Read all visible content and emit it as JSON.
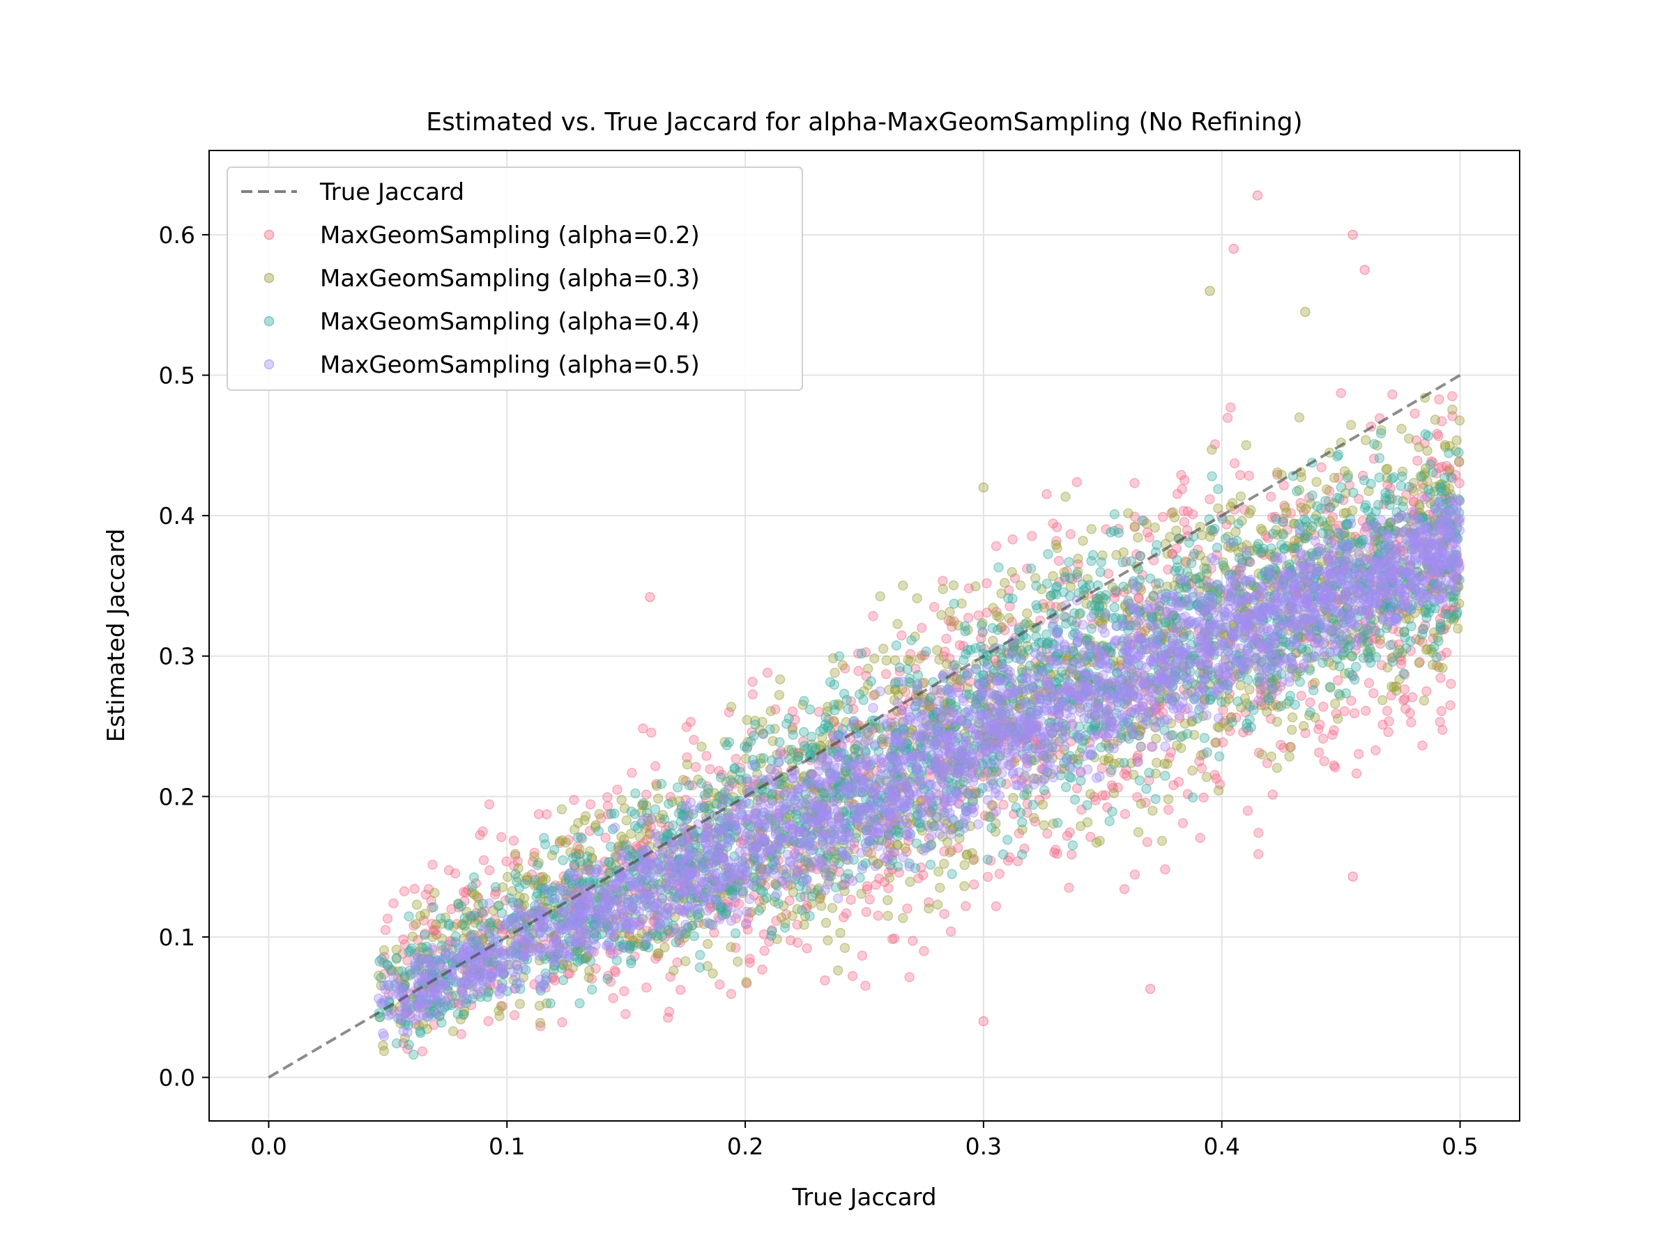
{
  "chart_data": {
    "type": "scatter",
    "title": "Estimated vs. True Jaccard for alpha-MaxGeomSampling (No Refining)",
    "xlabel": "True Jaccard",
    "ylabel": "Estimated Jaccard",
    "xlim": [
      -0.025,
      0.525
    ],
    "ylim": [
      -0.031,
      0.66
    ],
    "xticks": [
      0.0,
      0.1,
      0.2,
      0.3,
      0.4,
      0.5
    ],
    "xtick_labels": [
      "0.0",
      "0.1",
      "0.2",
      "0.3",
      "0.4",
      "0.5"
    ],
    "yticks": [
      0.0,
      0.1,
      0.2,
      0.3,
      0.4,
      0.5,
      0.6
    ],
    "ytick_labels": [
      "0.0",
      "0.1",
      "0.2",
      "0.3",
      "0.4",
      "0.5",
      "0.6"
    ],
    "grid": true,
    "legend_position": "upper-left",
    "reference_line": {
      "name": "True Jaccard",
      "x": [
        0.0,
        0.5
      ],
      "y": [
        0.0,
        0.5
      ],
      "color": "#808080",
      "style": "dashed"
    },
    "x_data_range": [
      0.046,
      0.5
    ],
    "series": [
      {
        "name": "MaxGeomSampling (alpha=0.2)",
        "color": "#f26b8a",
        "band_at_x": [
          {
            "x": 0.05,
            "y_low": 0.0,
            "y_high": 0.16
          },
          {
            "x": 0.2,
            "y_low": 0.03,
            "y_high": 0.3
          },
          {
            "x": 0.35,
            "y_low": 0.1,
            "y_high": 0.46
          },
          {
            "x": 0.5,
            "y_low": 0.2,
            "y_high": 0.54
          }
        ],
        "outliers": [
          [
            0.415,
            0.628
          ],
          [
            0.455,
            0.6
          ],
          [
            0.46,
            0.575
          ],
          [
            0.405,
            0.59
          ],
          [
            0.16,
            0.342
          ],
          [
            0.37,
            0.063
          ],
          [
            0.455,
            0.143
          ],
          [
            0.3,
            0.04
          ]
        ]
      },
      {
        "name": "MaxGeomSampling (alpha=0.3)",
        "color": "#9a9f35",
        "band_at_x": [
          {
            "x": 0.05,
            "y_low": 0.0,
            "y_high": 0.13
          },
          {
            "x": 0.2,
            "y_low": 0.05,
            "y_high": 0.29
          },
          {
            "x": 0.35,
            "y_low": 0.14,
            "y_high": 0.45
          },
          {
            "x": 0.5,
            "y_low": 0.25,
            "y_high": 0.52
          }
        ],
        "outliers": [
          [
            0.395,
            0.56
          ],
          [
            0.435,
            0.545
          ],
          [
            0.3,
            0.42
          ]
        ]
      },
      {
        "name": "MaxGeomSampling (alpha=0.4)",
        "color": "#36ada4",
        "band_at_x": [
          {
            "x": 0.05,
            "y_low": 0.005,
            "y_high": 0.11
          },
          {
            "x": 0.2,
            "y_low": 0.07,
            "y_high": 0.27
          },
          {
            "x": 0.35,
            "y_low": 0.17,
            "y_high": 0.42
          },
          {
            "x": 0.5,
            "y_low": 0.28,
            "y_high": 0.48
          }
        ],
        "outliers": []
      },
      {
        "name": "MaxGeomSampling (alpha=0.5)",
        "color": "#a48cf4",
        "band_at_x": [
          {
            "x": 0.05,
            "y_low": 0.02,
            "y_high": 0.085
          },
          {
            "x": 0.2,
            "y_low": 0.1,
            "y_high": 0.23
          },
          {
            "x": 0.35,
            "y_low": 0.2,
            "y_high": 0.36
          },
          {
            "x": 0.5,
            "y_low": 0.33,
            "y_high": 0.43
          }
        ],
        "outliers": []
      }
    ]
  }
}
